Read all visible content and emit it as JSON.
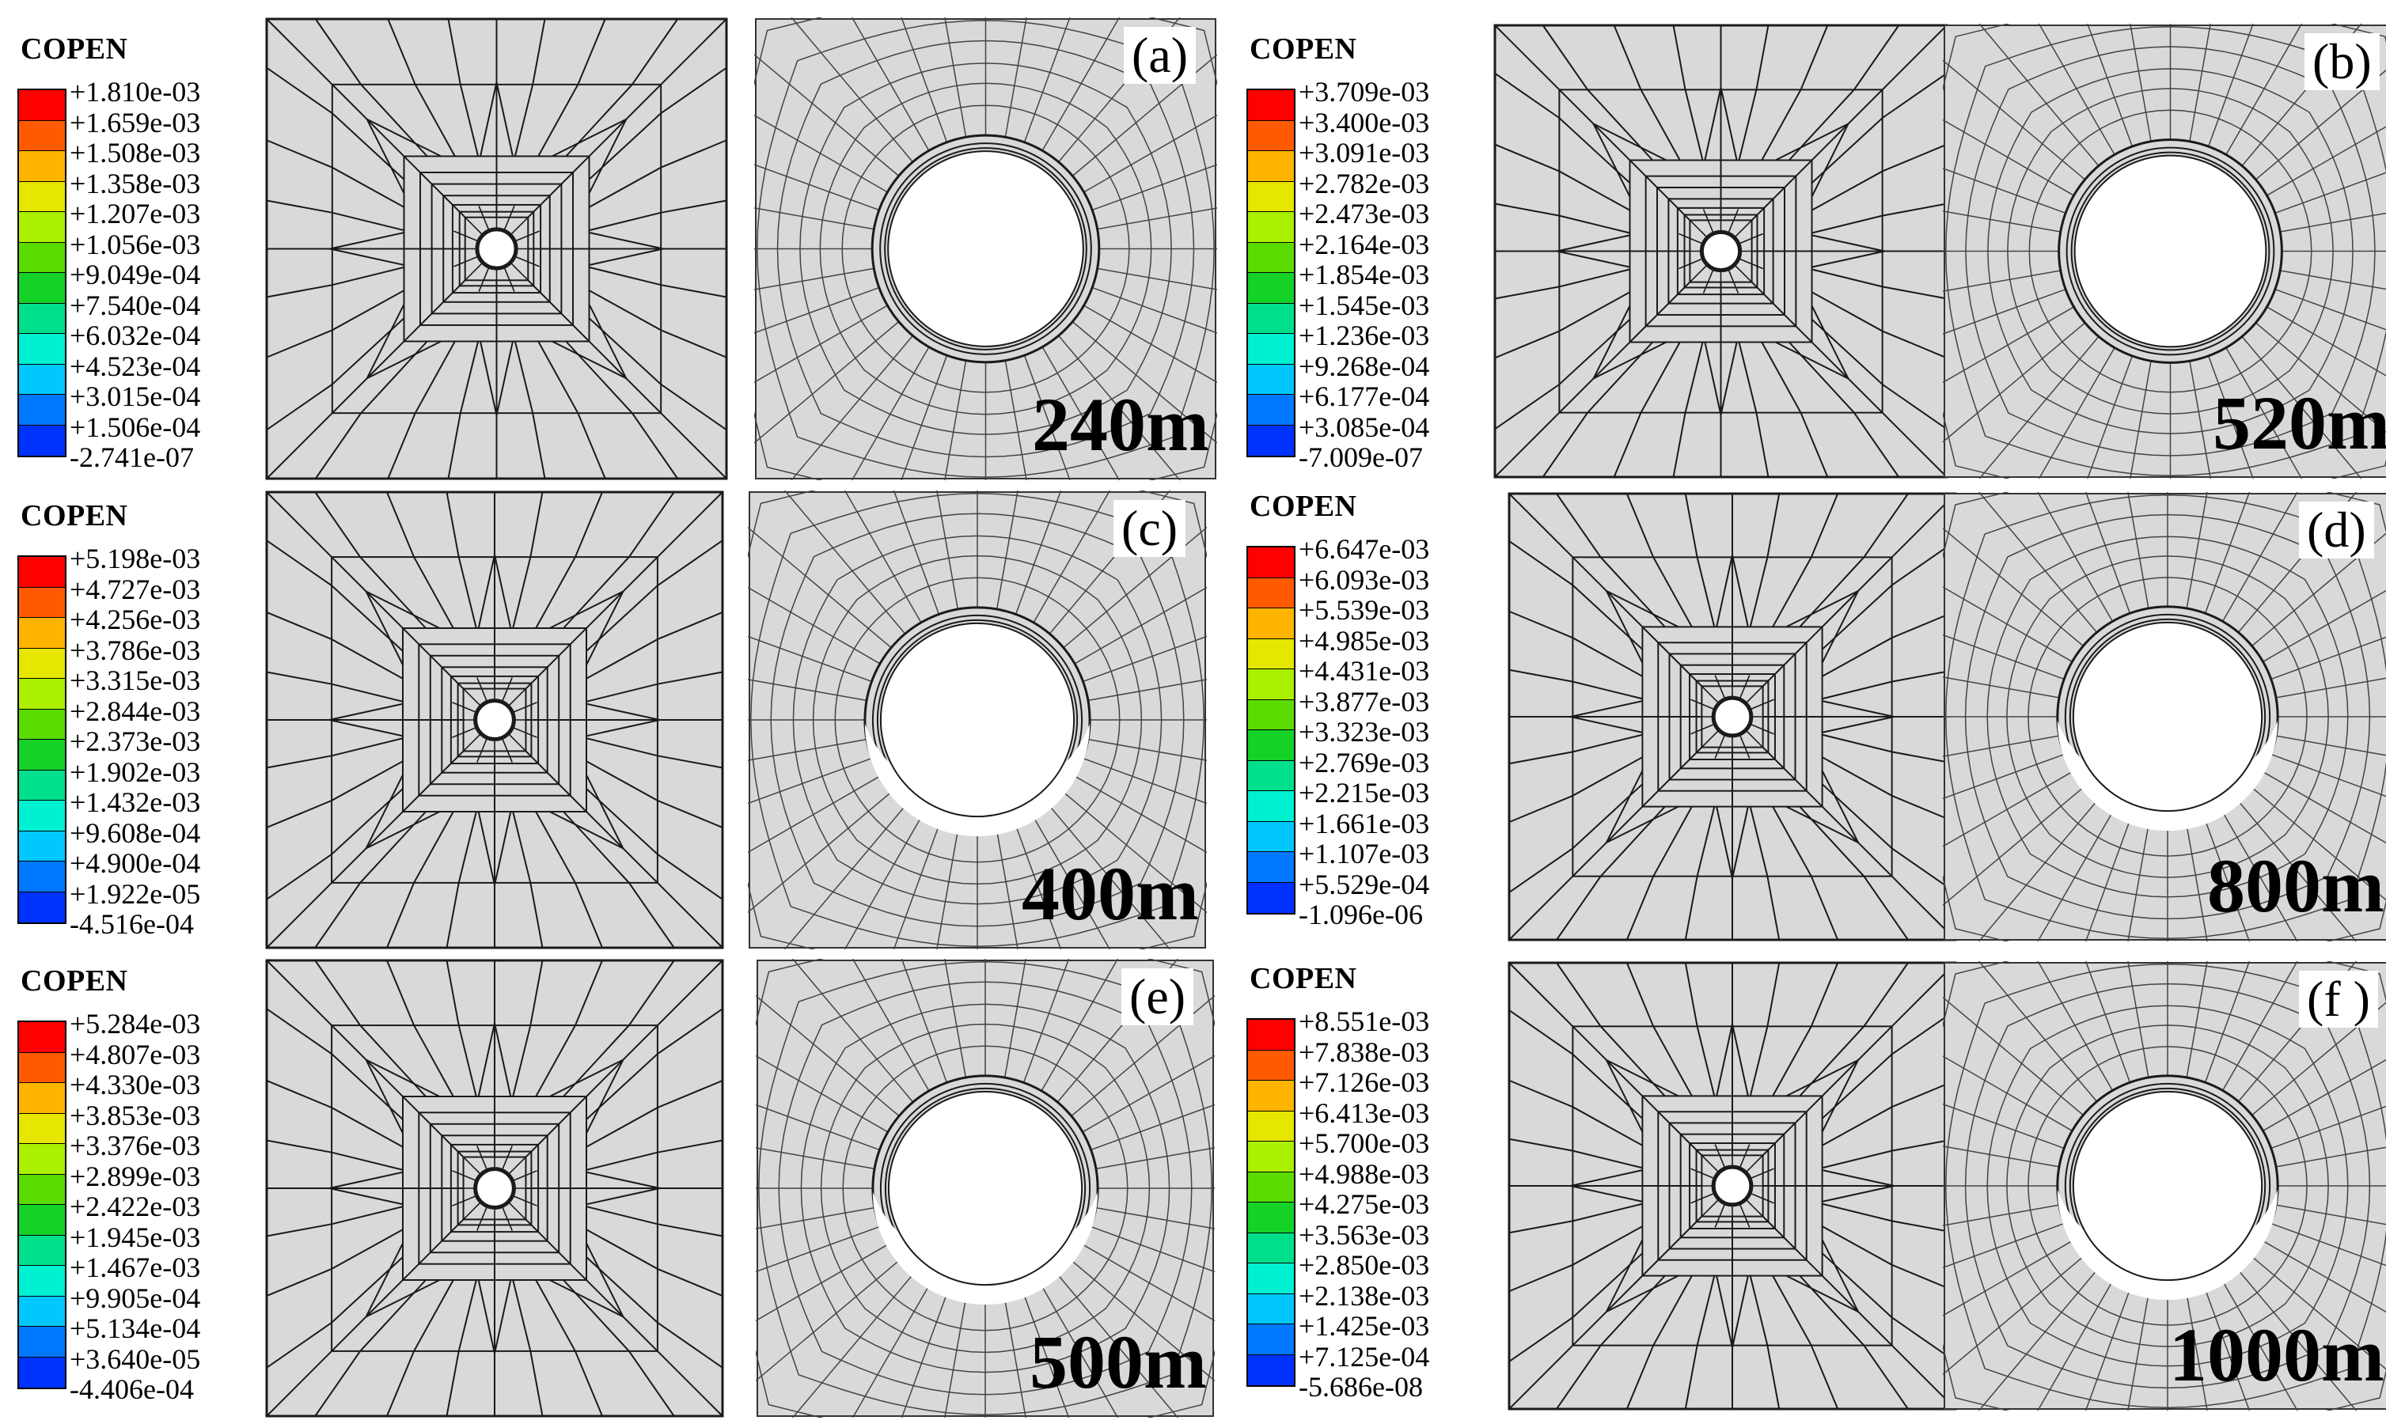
{
  "legend_title": "COPEN",
  "panels": [
    {
      "tag": "(a)",
      "depth": "240m",
      "legend": [
        "+1.810e-03",
        "+1.659e-03",
        "+1.508e-03",
        "+1.358e-03",
        "+1.207e-03",
        "+1.056e-03",
        "+9.049e-04",
        "+7.540e-04",
        "+6.032e-04",
        "+4.523e-04",
        "+3.015e-04",
        "+1.506e-04",
        "-2.741e-07"
      ]
    },
    {
      "tag": "(b)",
      "depth": "520m",
      "legend": [
        "+3.709e-03",
        "+3.400e-03",
        "+3.091e-03",
        "+2.782e-03",
        "+2.473e-03",
        "+2.164e-03",
        "+1.854e-03",
        "+1.545e-03",
        "+1.236e-03",
        "+9.268e-04",
        "+6.177e-04",
        "+3.085e-04",
        "-7.009e-07"
      ]
    },
    {
      "tag": "(c)",
      "depth": "400m",
      "legend": [
        "+5.198e-03",
        "+4.727e-03",
        "+4.256e-03",
        "+3.786e-03",
        "+3.315e-03",
        "+2.844e-03",
        "+2.373e-03",
        "+1.902e-03",
        "+1.432e-03",
        "+9.608e-04",
        "+4.900e-04",
        "+1.922e-05",
        "-4.516e-04"
      ]
    },
    {
      "tag": "(d)",
      "depth": "800m",
      "legend": [
        "+6.647e-03",
        "+6.093e-03",
        "+5.539e-03",
        "+4.985e-03",
        "+4.431e-03",
        "+3.877e-03",
        "+3.323e-03",
        "+2.769e-03",
        "+2.215e-03",
        "+1.661e-03",
        "+1.107e-03",
        "+5.529e-04",
        "-1.096e-06"
      ]
    },
    {
      "tag": "(e)",
      "depth": "500m",
      "legend": [
        "+5.284e-03",
        "+4.807e-03",
        "+4.330e-03",
        "+3.853e-03",
        "+3.376e-03",
        "+2.899e-03",
        "+2.422e-03",
        "+1.945e-03",
        "+1.467e-03",
        "+9.905e-04",
        "+5.134e-04",
        "+3.640e-05",
        "-4.406e-04"
      ]
    },
    {
      "tag": "(f )",
      "depth": "1000m",
      "legend": [
        "+8.551e-03",
        "+7.838e-03",
        "+7.126e-03",
        "+6.413e-03",
        "+5.700e-03",
        "+4.988e-03",
        "+4.275e-03",
        "+3.563e-03",
        "+2.850e-03",
        "+2.138e-03",
        "+1.425e-03",
        "+7.125e-04",
        "-5.686e-08"
      ]
    }
  ],
  "colors": {
    "mesh_fill": "#d9d9d9",
    "mesh_line": "#1a1a1a",
    "legend_bands": [
      "#ff0000",
      "#ff5a00",
      "#ffb400",
      "#e6e600",
      "#aaf000",
      "#5adc00",
      "#14d228",
      "#00e08c",
      "#00f0d2",
      "#00c8ff",
      "#0078ff",
      "#0032ff",
      "#0000e6"
    ]
  }
}
